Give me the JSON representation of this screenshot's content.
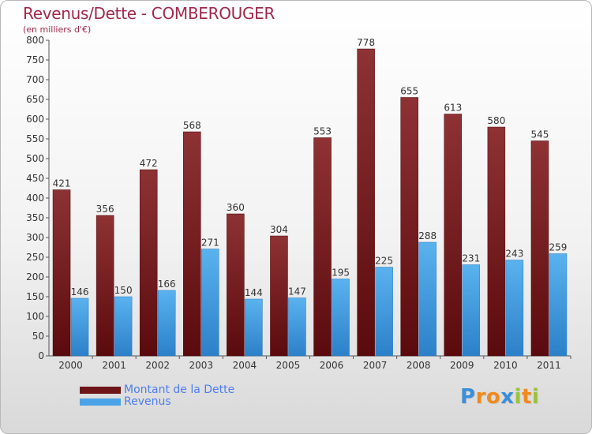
{
  "header": {
    "title": "Revenus/Dette - COMBEROUGER",
    "subtitle": "(en milliers d'€)"
  },
  "colors": {
    "debt": "#7a1b1e",
    "debt_light": "#8e3234",
    "revenue": "#4aa3e6",
    "revenue_dark": "#2f86cf",
    "title": "#a0284a",
    "legend_text": "#4e7df0"
  },
  "chart_data": {
    "type": "bar",
    "title": "Revenus/Dette - COMBEROUGER",
    "ylabel": "(en milliers d'€)",
    "xlabel": "",
    "ylim": [
      0,
      800
    ],
    "ytick_step": 50,
    "grid": false,
    "legend_position": "bottom-left",
    "categories": [
      "2000",
      "2001",
      "2002",
      "2003",
      "2004",
      "2005",
      "2006",
      "2007",
      "2008",
      "2009",
      "2010",
      "2011"
    ],
    "series": [
      {
        "name": "Montant de la Dette",
        "values": [
          421,
          356,
          472,
          568,
          360,
          304,
          553,
          778,
          655,
          613,
          580,
          545
        ]
      },
      {
        "name": "Revenus",
        "values": [
          146,
          150,
          166,
          271,
          144,
          147,
          195,
          225,
          288,
          231,
          243,
          259
        ]
      }
    ]
  },
  "legend": {
    "items": [
      {
        "label": "Montant de la Dette",
        "color": "#6e1518"
      },
      {
        "label": "Revenus",
        "color": "#4aa3e6"
      }
    ]
  },
  "branding": {
    "letters": [
      "P",
      "r",
      "o",
      "x",
      "i",
      "t",
      "i"
    ],
    "letter_colors": [
      "#3a8fd8",
      "#f08a1c",
      "#f08a1c",
      "#3a8fd8",
      "#9bc23c",
      "#f08a1c",
      "#9bc23c"
    ]
  }
}
